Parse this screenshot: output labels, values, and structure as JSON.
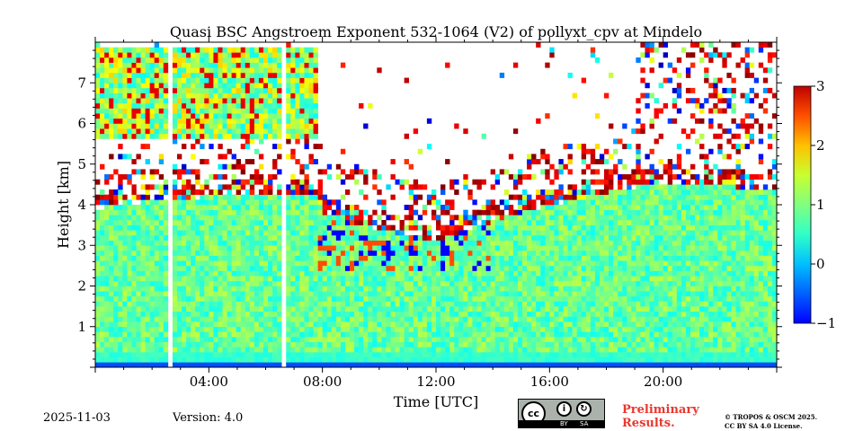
{
  "chart_data": {
    "type": "heatmap",
    "title": "Quasi BSC Angstroem Exponent 532-1064 (V2) of pollyxt_cpv at Mindelo",
    "xlabel": "Time [UTC]",
    "ylabel": "Height [km]",
    "xlim_hours": [
      0,
      24
    ],
    "ylim_km": [
      0,
      8
    ],
    "x_ticks": [
      {
        "value": 4,
        "label": "04:00"
      },
      {
        "value": 8,
        "label": "08:00"
      },
      {
        "value": 12,
        "label": "12:00"
      },
      {
        "value": 16,
        "label": "16:00"
      },
      {
        "value": 20,
        "label": "20:00"
      }
    ],
    "y_ticks": [
      {
        "value": 1,
        "label": "1"
      },
      {
        "value": 2,
        "label": "2"
      },
      {
        "value": 3,
        "label": "3"
      },
      {
        "value": 4,
        "label": "4"
      },
      {
        "value": 5,
        "label": "5"
      },
      {
        "value": 6,
        "label": "6"
      },
      {
        "value": 7,
        "label": "7"
      }
    ],
    "colorbar": {
      "min": -1,
      "max": 3,
      "colormap": "jet",
      "ticks": [
        {
          "value": 3,
          "label": "3"
        },
        {
          "value": 2,
          "label": "2"
        },
        {
          "value": 1,
          "label": "1"
        },
        {
          "value": 0,
          "label": "0"
        },
        {
          "value": -1,
          "label": "−1"
        }
      ]
    },
    "data_gaps_hours": [
      [
        2.55,
        2.7
      ],
      [
        6.6,
        6.75
      ]
    ],
    "aerosol_layer": [
      {
        "hour": 0,
        "top_km": 3.9
      },
      {
        "hour": 2,
        "top_km": 4.1
      },
      {
        "hour": 4,
        "top_km": 4.2
      },
      {
        "hour": 6,
        "top_km": 4.25
      },
      {
        "hour": 7.8,
        "top_km": 4.2
      },
      {
        "hour": 8,
        "top_km": 3.8
      },
      {
        "hour": 10,
        "top_km": 3.4
      },
      {
        "hour": 12,
        "top_km": 3.1
      },
      {
        "hour": 14,
        "top_km": 3.6
      },
      {
        "hour": 16,
        "top_km": 4.0
      },
      {
        "hour": 18,
        "top_km": 4.3
      },
      {
        "hour": 20,
        "top_km": 4.55
      },
      {
        "hour": 22,
        "top_km": 4.5
      },
      {
        "hour": 24,
        "top_km": 4.3
      }
    ],
    "typical_layer_value": 0.9,
    "upper_layer": {
      "start_hour": 0,
      "end_hour": 7.8,
      "bottom_km": 5.6,
      "top_km": 7.9,
      "typical_value": 1.1
    }
  },
  "footer": {
    "date": "2025-11-03",
    "version": "Version: 4.0",
    "preliminary_line1": "Preliminary",
    "preliminary_line2": "Results.",
    "copyright_line1": "© TROPOS & OSCM 2025.",
    "copyright_line2": "CC BY SA 4.0 License.",
    "license_badge": {
      "cc": "cc",
      "by": "BY",
      "sa": "SA"
    }
  }
}
